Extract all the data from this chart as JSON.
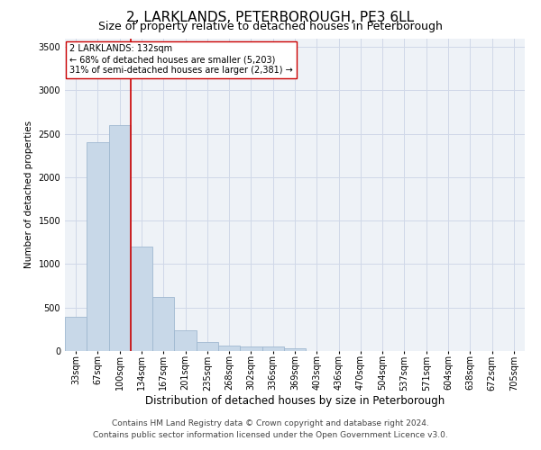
{
  "title1": "2, LARKLANDS, PETERBOROUGH, PE3 6LL",
  "title2": "Size of property relative to detached houses in Peterborough",
  "xlabel": "Distribution of detached houses by size in Peterborough",
  "ylabel": "Number of detached properties",
  "footnote1": "Contains HM Land Registry data © Crown copyright and database right 2024.",
  "footnote2": "Contains public sector information licensed under the Open Government Licence v3.0.",
  "categories": [
    "33sqm",
    "67sqm",
    "100sqm",
    "134sqm",
    "167sqm",
    "201sqm",
    "235sqm",
    "268sqm",
    "302sqm",
    "336sqm",
    "369sqm",
    "403sqm",
    "436sqm",
    "470sqm",
    "504sqm",
    "537sqm",
    "571sqm",
    "604sqm",
    "638sqm",
    "672sqm",
    "705sqm"
  ],
  "values": [
    390,
    2400,
    2600,
    1200,
    620,
    240,
    100,
    65,
    55,
    55,
    30,
    0,
    0,
    0,
    0,
    0,
    0,
    0,
    0,
    0,
    0
  ],
  "bar_color": "#c8d8e8",
  "bar_edge_color": "#a0b8d0",
  "bar_linewidth": 0.6,
  "vline_color": "#cc0000",
  "vline_linewidth": 1.2,
  "vline_xindex": 2.5,
  "annotation_line1": "2 LARKLANDS: 132sqm",
  "annotation_line2": "← 68% of detached houses are smaller (5,203)",
  "annotation_line3": "31% of semi-detached houses are larger (2,381) →",
  "annotation_box_color": "#ffffff",
  "annotation_box_edge": "#cc0000",
  "ylim": [
    0,
    3600
  ],
  "yticks": [
    0,
    500,
    1000,
    1500,
    2000,
    2500,
    3000,
    3500
  ],
  "grid_color": "#d0d8e8",
  "background_color": "#eef2f7",
  "title1_fontsize": 11,
  "title2_fontsize": 9,
  "xlabel_fontsize": 8.5,
  "ylabel_fontsize": 7.5,
  "tick_fontsize": 7,
  "annotation_fontsize": 7,
  "footnote_fontsize": 6.5
}
